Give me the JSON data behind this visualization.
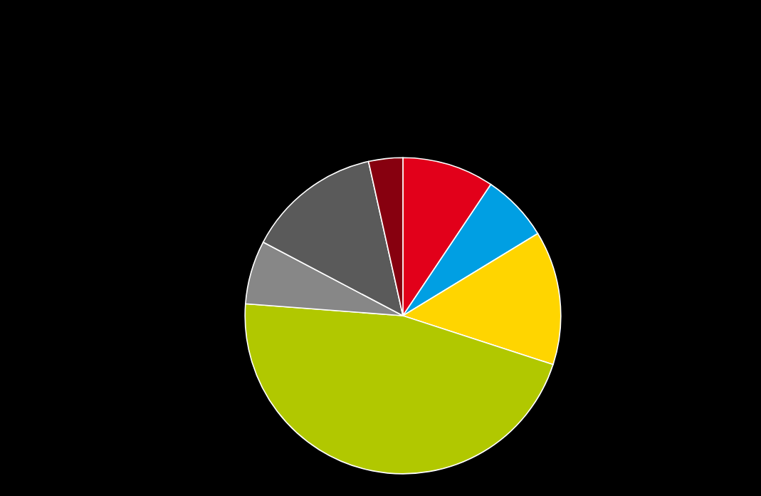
{
  "chart_data": {
    "type": "pie",
    "categories": [
      null,
      null,
      null,
      null,
      null,
      null,
      null
    ],
    "values": [
      9.4,
      6.9,
      13.7,
      46.2,
      6.5,
      13.8,
      3.5
    ],
    "colors": [
      "#e2001a",
      "#009fe3",
      "#ffd500",
      "#b1c800",
      "#878787",
      "#5a5a5a",
      "#87000f"
    ]
  }
}
